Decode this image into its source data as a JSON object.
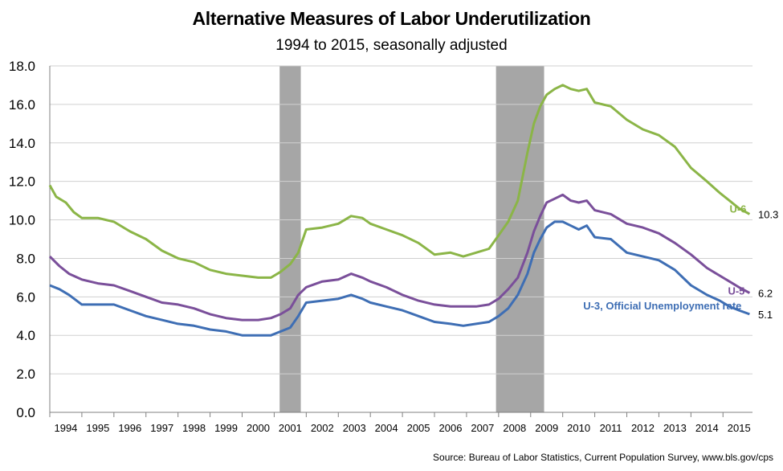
{
  "header": {
    "title": "Alternative Measures of Labor Underutilization",
    "subtitle": "1994 to 2015, seasonally adjusted"
  },
  "footer": {
    "source": "Source: Bureau of Labor Statistics, Current Population Survey, www.bls.gov/cps"
  },
  "chart_data": {
    "type": "line",
    "title": "Alternative Measures of Labor Underutilization",
    "subtitle": "1994 to 2015, seasonally adjusted",
    "xlabel": "",
    "ylabel": "",
    "ylim": [
      0,
      18
    ],
    "xlim": [
      1994.0,
      2015.92
    ],
    "y_ticks": [
      "0.0",
      "2.0",
      "4.0",
      "6.0",
      "8.0",
      "10.0",
      "12.0",
      "14.0",
      "16.0",
      "18.0"
    ],
    "x_tick_labels": [
      "1994",
      "1995",
      "1996",
      "1997",
      "1998",
      "1999",
      "2000",
      "2001",
      "2002",
      "2003",
      "2004",
      "2005",
      "2006",
      "2007",
      "2008",
      "2009",
      "2010",
      "2011",
      "2012",
      "2013",
      "2014",
      "2015"
    ],
    "grid": "horizontal",
    "legend": "none (inline series labels)",
    "recessions": [
      {
        "start": 2001.17,
        "end": 2001.83
      },
      {
        "start": 2007.92,
        "end": 2009.42
      }
    ],
    "series": [
      {
        "name": "U-6",
        "color": "#8BB547",
        "end_value": "10.3",
        "x": [
          1994.0,
          1994.2,
          1994.5,
          1994.75,
          1995.0,
          1995.5,
          1996.0,
          1996.5,
          1997.0,
          1997.5,
          1998.0,
          1998.5,
          1999.0,
          1999.5,
          2000.0,
          2000.5,
          2000.9,
          2001.2,
          2001.5,
          2001.75,
          2002.0,
          2002.5,
          2003.0,
          2003.4,
          2003.75,
          2004.0,
          2004.5,
          2005.0,
          2005.5,
          2006.0,
          2006.5,
          2006.9,
          2007.3,
          2007.7,
          2008.0,
          2008.3,
          2008.6,
          2008.9,
          2009.1,
          2009.3,
          2009.5,
          2009.75,
          2010.0,
          2010.25,
          2010.5,
          2010.75,
          2011.0,
          2011.5,
          2012.0,
          2012.5,
          2013.0,
          2013.5,
          2014.0,
          2014.5,
          2014.9,
          2015.2,
          2015.5,
          2015.83
        ],
        "y": [
          11.8,
          11.2,
          10.9,
          10.4,
          10.1,
          10.1,
          9.9,
          9.4,
          9.0,
          8.4,
          8.0,
          7.8,
          7.4,
          7.2,
          7.1,
          7.0,
          7.0,
          7.3,
          7.7,
          8.3,
          9.5,
          9.6,
          9.8,
          10.2,
          10.1,
          9.8,
          9.5,
          9.2,
          8.8,
          8.2,
          8.3,
          8.1,
          8.3,
          8.5,
          9.2,
          9.9,
          11.0,
          13.5,
          15.0,
          15.9,
          16.5,
          16.8,
          17.0,
          16.8,
          16.7,
          16.8,
          16.1,
          15.9,
          15.2,
          14.7,
          14.4,
          13.8,
          12.7,
          12.0,
          11.4,
          11.0,
          10.6,
          10.3
        ]
      },
      {
        "name": "U-5",
        "color": "#7A4F9A",
        "end_value": "6.2",
        "x": [
          1994.0,
          1994.3,
          1994.6,
          1995.0,
          1995.5,
          1996.0,
          1996.5,
          1997.0,
          1997.5,
          1998.0,
          1998.5,
          1999.0,
          1999.5,
          2000.0,
          2000.5,
          2000.9,
          2001.2,
          2001.5,
          2001.75,
          2002.0,
          2002.5,
          2003.0,
          2003.4,
          2003.75,
          2004.0,
          2004.5,
          2005.0,
          2005.5,
          2006.0,
          2006.5,
          2006.9,
          2007.3,
          2007.7,
          2008.0,
          2008.3,
          2008.6,
          2008.9,
          2009.1,
          2009.3,
          2009.5,
          2009.75,
          2010.0,
          2010.25,
          2010.5,
          2010.75,
          2011.0,
          2011.5,
          2012.0,
          2012.5,
          2013.0,
          2013.5,
          2014.0,
          2014.5,
          2014.9,
          2015.2,
          2015.5,
          2015.83
        ],
        "y": [
          8.1,
          7.6,
          7.2,
          6.9,
          6.7,
          6.6,
          6.3,
          6.0,
          5.7,
          5.6,
          5.4,
          5.1,
          4.9,
          4.8,
          4.8,
          4.9,
          5.1,
          5.4,
          6.1,
          6.5,
          6.8,
          6.9,
          7.2,
          7.0,
          6.8,
          6.5,
          6.1,
          5.8,
          5.6,
          5.5,
          5.5,
          5.5,
          5.6,
          5.9,
          6.4,
          7.0,
          8.3,
          9.4,
          10.2,
          10.9,
          11.1,
          11.3,
          11.0,
          10.9,
          11.0,
          10.5,
          10.3,
          9.8,
          9.6,
          9.3,
          8.8,
          8.2,
          7.5,
          7.1,
          6.8,
          6.5,
          6.2
        ]
      },
      {
        "name": "U-3, Official Unemployment rate",
        "color": "#3E6EB4",
        "end_value": "5.1",
        "x": [
          1994.0,
          1994.3,
          1994.6,
          1995.0,
          1995.5,
          1996.0,
          1996.5,
          1997.0,
          1997.5,
          1998.0,
          1998.5,
          1999.0,
          1999.5,
          2000.0,
          2000.5,
          2000.9,
          2001.2,
          2001.5,
          2001.75,
          2002.0,
          2002.5,
          2003.0,
          2003.4,
          2003.75,
          2004.0,
          2004.5,
          2005.0,
          2005.5,
          2006.0,
          2006.5,
          2006.9,
          2007.3,
          2007.7,
          2008.0,
          2008.3,
          2008.6,
          2008.9,
          2009.1,
          2009.3,
          2009.5,
          2009.75,
          2010.0,
          2010.25,
          2010.5,
          2010.75,
          2011.0,
          2011.5,
          2012.0,
          2012.5,
          2013.0,
          2013.5,
          2014.0,
          2014.5,
          2014.9,
          2015.2,
          2015.5,
          2015.83
        ],
        "y": [
          6.6,
          6.4,
          6.1,
          5.6,
          5.6,
          5.6,
          5.3,
          5.0,
          4.8,
          4.6,
          4.5,
          4.3,
          4.2,
          4.0,
          4.0,
          4.0,
          4.2,
          4.4,
          5.0,
          5.7,
          5.8,
          5.9,
          6.1,
          5.9,
          5.7,
          5.5,
          5.3,
          5.0,
          4.7,
          4.6,
          4.5,
          4.6,
          4.7,
          5.0,
          5.4,
          6.1,
          7.2,
          8.3,
          9.0,
          9.6,
          9.9,
          9.9,
          9.7,
          9.5,
          9.7,
          9.1,
          9.0,
          8.3,
          8.1,
          7.9,
          7.4,
          6.6,
          6.1,
          5.8,
          5.5,
          5.3,
          5.1
        ]
      }
    ]
  }
}
